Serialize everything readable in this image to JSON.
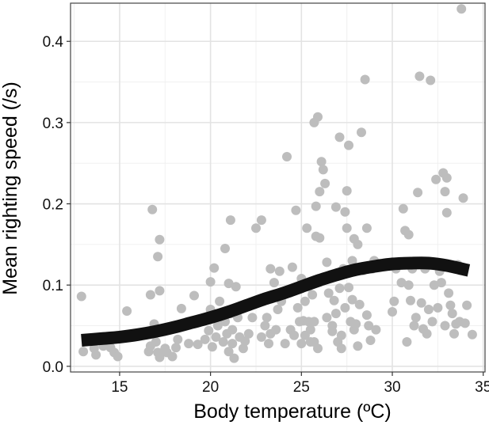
{
  "chart_data": {
    "type": "scatter",
    "title": "",
    "xlabel": "Body temperature (ºC)",
    "ylabel": "Mean righting speed (/s)",
    "xlim": [
      12.3,
      35.1
    ],
    "ylim": [
      -0.007,
      0.447
    ],
    "xticks": [
      15,
      20,
      25,
      30,
      35
    ],
    "yticks": [
      0.0,
      0.1,
      0.2,
      0.3,
      0.4
    ],
    "xtick_labels": [
      "15",
      "20",
      "25",
      "30",
      "35"
    ],
    "ytick_labels": [
      "0.0",
      "0.1",
      "0.2",
      "0.3",
      "0.4"
    ],
    "grid": true,
    "point_color": "#bdbdbd",
    "line_color": "#111111",
    "points": [
      [
        12.9,
        0.086
      ],
      [
        13.0,
        0.018
      ],
      [
        13.6,
        0.022
      ],
      [
        13.7,
        0.014
      ],
      [
        13.9,
        0.035
      ],
      [
        14.1,
        0.025
      ],
      [
        14.5,
        0.023
      ],
      [
        14.7,
        0.017
      ],
      [
        14.9,
        0.012
      ],
      [
        15.4,
        0.068
      ],
      [
        16.6,
        0.018
      ],
      [
        16.7,
        0.025
      ],
      [
        16.7,
        0.088
      ],
      [
        16.8,
        0.193
      ],
      [
        16.9,
        0.052
      ],
      [
        17.0,
        0.03
      ],
      [
        17.1,
        0.017
      ],
      [
        17.1,
        0.135
      ],
      [
        17.2,
        0.156
      ],
      [
        17.2,
        0.093
      ],
      [
        17.2,
        0.011
      ],
      [
        17.5,
        0.022
      ],
      [
        17.6,
        0.017
      ],
      [
        17.9,
        0.012
      ],
      [
        18.1,
        0.023
      ],
      [
        18.2,
        0.033
      ],
      [
        18.4,
        0.071
      ],
      [
        18.8,
        0.028
      ],
      [
        19.1,
        0.087
      ],
      [
        19.3,
        0.027
      ],
      [
        19.7,
        0.033
      ],
      [
        19.9,
        0.044
      ],
      [
        20.0,
        0.07
      ],
      [
        20.0,
        0.104
      ],
      [
        20.1,
        0.024
      ],
      [
        20.2,
        0.121
      ],
      [
        20.3,
        0.036
      ],
      [
        20.4,
        0.05
      ],
      [
        20.5,
        0.08
      ],
      [
        20.6,
        0.061
      ],
      [
        20.7,
        0.03
      ],
      [
        20.8,
        0.055
      ],
      [
        20.8,
        0.145
      ],
      [
        20.9,
        0.04
      ],
      [
        21.0,
        0.102
      ],
      [
        21.0,
        0.018
      ],
      [
        21.1,
        0.065
      ],
      [
        21.1,
        0.18
      ],
      [
        21.2,
        0.028
      ],
      [
        21.2,
        0.045
      ],
      [
        21.3,
        0.01
      ],
      [
        21.4,
        0.098
      ],
      [
        21.5,
        0.06
      ],
      [
        21.6,
        0.036
      ],
      [
        21.8,
        0.022
      ],
      [
        21.9,
        0.031
      ],
      [
        22.1,
        0.04
      ],
      [
        22.3,
        0.06
      ],
      [
        22.5,
        0.17
      ],
      [
        22.8,
        0.18
      ],
      [
        22.8,
        0.036
      ],
      [
        23.0,
        0.05
      ],
      [
        23.1,
        0.06
      ],
      [
        23.2,
        0.028
      ],
      [
        23.3,
        0.12
      ],
      [
        23.3,
        0.04
      ],
      [
        23.5,
        0.103
      ],
      [
        23.6,
        0.045
      ],
      [
        23.7,
        0.07
      ],
      [
        23.8,
        0.117
      ],
      [
        23.9,
        0.08
      ],
      [
        24.1,
        0.028
      ],
      [
        24.2,
        0.258
      ],
      [
        24.3,
        0.093
      ],
      [
        24.4,
        0.045
      ],
      [
        24.5,
        0.122
      ],
      [
        24.6,
        0.038
      ],
      [
        24.7,
        0.192
      ],
      [
        24.8,
        0.072
      ],
      [
        24.8,
        0.095
      ],
      [
        24.9,
        0.055
      ],
      [
        25.0,
        0.028
      ],
      [
        25.0,
        0.108
      ],
      [
        25.1,
        0.056
      ],
      [
        25.2,
        0.08
      ],
      [
        25.2,
        0.038
      ],
      [
        25.3,
        0.17
      ],
      [
        25.4,
        0.098
      ],
      [
        25.4,
        0.055
      ],
      [
        25.5,
        0.045
      ],
      [
        25.5,
        0.03
      ],
      [
        25.6,
        0.088
      ],
      [
        25.7,
        0.055
      ],
      [
        25.7,
        0.03
      ],
      [
        25.7,
        0.3
      ],
      [
        25.8,
        0.16
      ],
      [
        25.8,
        0.197
      ],
      [
        25.9,
        0.307
      ],
      [
        25.9,
        0.022
      ],
      [
        26.0,
        0.215
      ],
      [
        26.0,
        0.158
      ],
      [
        26.1,
        0.252
      ],
      [
        26.2,
        0.242
      ],
      [
        26.3,
        0.225
      ],
      [
        26.4,
        0.06
      ],
      [
        26.4,
        0.128
      ],
      [
        26.5,
        0.09
      ],
      [
        26.7,
        0.05
      ],
      [
        26.7,
        0.043
      ],
      [
        26.8,
        0.081
      ],
      [
        26.9,
        0.196
      ],
      [
        26.9,
        0.065
      ],
      [
        27.0,
        0.03
      ],
      [
        27.1,
        0.282
      ],
      [
        27.1,
        0.096
      ],
      [
        27.2,
        0.022
      ],
      [
        27.2,
        0.038
      ],
      [
        27.3,
        0.12
      ],
      [
        27.4,
        0.19
      ],
      [
        27.4,
        0.072
      ],
      [
        27.5,
        0.216
      ],
      [
        27.5,
        0.17
      ],
      [
        27.6,
        0.272
      ],
      [
        27.6,
        0.097
      ],
      [
        27.7,
        0.055
      ],
      [
        27.8,
        0.13
      ],
      [
        27.8,
        0.082
      ],
      [
        27.9,
        0.157
      ],
      [
        27.9,
        0.045
      ],
      [
        28.0,
        0.052
      ],
      [
        28.1,
        0.15
      ],
      [
        28.1,
        0.025
      ],
      [
        28.2,
        0.076
      ],
      [
        28.3,
        0.288
      ],
      [
        28.4,
        0.118
      ],
      [
        28.5,
        0.353
      ],
      [
        28.6,
        0.17
      ],
      [
        28.6,
        0.063
      ],
      [
        28.7,
        0.05
      ],
      [
        28.8,
        0.032
      ],
      [
        28.9,
        0.12
      ],
      [
        29.0,
        0.13
      ],
      [
        29.1,
        0.045
      ],
      [
        30.0,
        0.067
      ],
      [
        30.1,
        0.08
      ],
      [
        30.2,
        0.12
      ],
      [
        30.5,
        0.103
      ],
      [
        30.6,
        0.194
      ],
      [
        30.7,
        0.167
      ],
      [
        30.8,
        0.03
      ],
      [
        30.9,
        0.162
      ],
      [
        30.9,
        0.1
      ],
      [
        31.0,
        0.081
      ],
      [
        31.1,
        0.12
      ],
      [
        31.2,
        0.05
      ],
      [
        31.3,
        0.06
      ],
      [
        31.4,
        0.214
      ],
      [
        31.5,
        0.357
      ],
      [
        31.6,
        0.078
      ],
      [
        31.7,
        0.046
      ],
      [
        31.8,
        0.12
      ],
      [
        31.9,
        0.04
      ],
      [
        32.0,
        0.07
      ],
      [
        32.1,
        0.352
      ],
      [
        32.2,
        0.055
      ],
      [
        32.3,
        0.1
      ],
      [
        32.4,
        0.23
      ],
      [
        32.5,
        0.072
      ],
      [
        32.6,
        0.117
      ],
      [
        32.7,
        0.103
      ],
      [
        32.8,
        0.238
      ],
      [
        32.9,
        0.05
      ],
      [
        32.9,
        0.215
      ],
      [
        33.0,
        0.232
      ],
      [
        33.0,
        0.189
      ],
      [
        33.1,
        0.09
      ],
      [
        33.2,
        0.075
      ],
      [
        33.3,
        0.065
      ],
      [
        33.4,
        0.04
      ],
      [
        33.5,
        0.052
      ],
      [
        33.6,
        0.125
      ],
      [
        33.7,
        0.055
      ],
      [
        33.8,
        0.44
      ],
      [
        33.9,
        0.207
      ],
      [
        34.0,
        0.053
      ],
      [
        34.1,
        0.075
      ],
      [
        34.4,
        0.039
      ]
    ],
    "smooth_line": [
      [
        12.9,
        0.032
      ],
      [
        14.0,
        0.034
      ],
      [
        15.0,
        0.036
      ],
      [
        16.0,
        0.039
      ],
      [
        17.0,
        0.043
      ],
      [
        18.0,
        0.048
      ],
      [
        19.0,
        0.054
      ],
      [
        20.0,
        0.06
      ],
      [
        21.0,
        0.067
      ],
      [
        22.0,
        0.075
      ],
      [
        23.0,
        0.083
      ],
      [
        24.0,
        0.09
      ],
      [
        25.0,
        0.098
      ],
      [
        26.0,
        0.106
      ],
      [
        27.0,
        0.113
      ],
      [
        28.0,
        0.119
      ],
      [
        29.0,
        0.123
      ],
      [
        30.0,
        0.126
      ],
      [
        31.0,
        0.127
      ],
      [
        32.0,
        0.127
      ],
      [
        33.0,
        0.124
      ],
      [
        34.2,
        0.118
      ]
    ]
  }
}
